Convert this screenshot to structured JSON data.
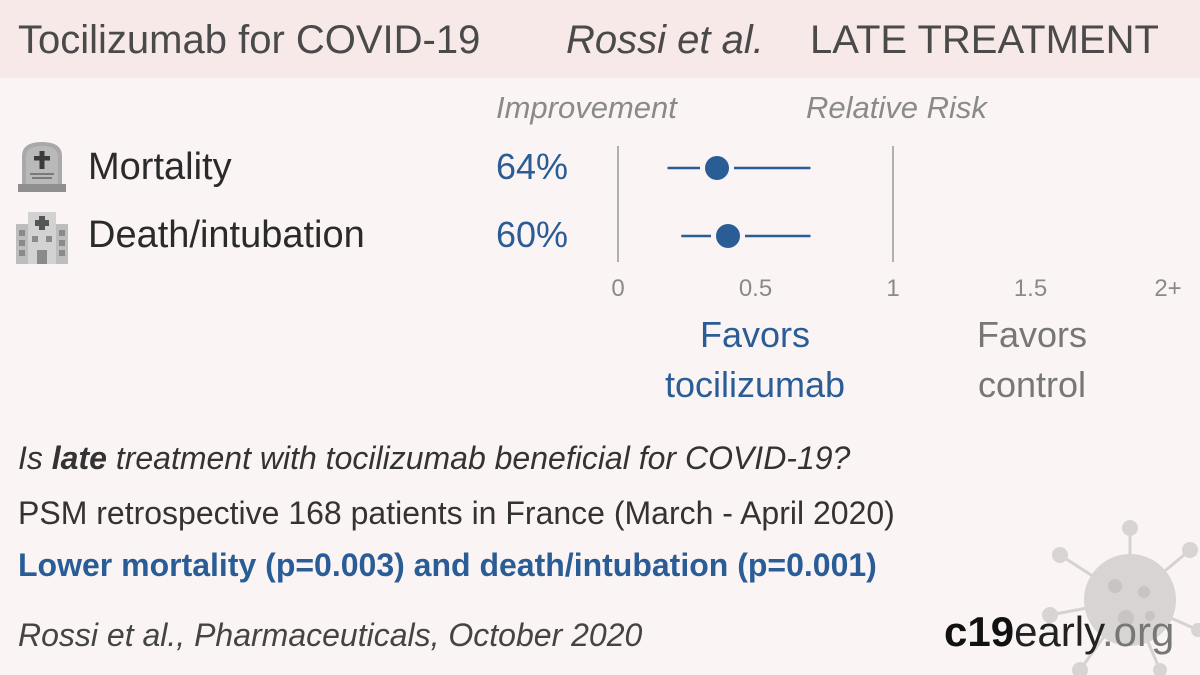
{
  "header": {
    "title": "Tocilizumab for COVID-19",
    "authors": "Rossi et al.",
    "stage": "LATE TREATMENT"
  },
  "columns": {
    "improvement": "Improvement",
    "relative_risk": "Relative Risk"
  },
  "outcomes": [
    {
      "label": "Mortality",
      "improvement": "64%",
      "icon": "tombstone-icon"
    },
    {
      "label": "Death/intubation",
      "improvement": "60%",
      "icon": "hospital-icon"
    }
  ],
  "chart_data": {
    "type": "forest",
    "x_axis": {
      "min": 0,
      "max": 2,
      "ticks": [
        0,
        0.5,
        1,
        1.5,
        2
      ],
      "tick_labels": [
        "0",
        "0.5",
        "1",
        "1.5",
        "2+"
      ]
    },
    "reference_lines": [
      0,
      1
    ],
    "rows": [
      {
        "name": "Mortality",
        "rr": 0.36,
        "ci_low": 0.18,
        "ci_high": 0.7
      },
      {
        "name": "Death/intubation",
        "rr": 0.4,
        "ci_low": 0.23,
        "ci_high": 0.7
      }
    ],
    "favors_left": [
      "Favors",
      "tocilizumab"
    ],
    "favors_right": [
      "Favors",
      "control"
    ],
    "colors": {
      "point": "#2a5d96",
      "axis": "#b0b0b0",
      "tick_text": "#8a8a8a"
    }
  },
  "summary": {
    "question_prefix": "Is ",
    "question_bold": "late",
    "question_suffix": " treatment with tocilizumab beneficial for COVID-19?",
    "design": "PSM retrospective 168 patients in France (March - April 2020)",
    "conclusion": "Lower mortality (p=0.003) and death/intubation (p=0.001)"
  },
  "citation": "Rossi et al., Pharmaceuticals, October 2020",
  "brand": {
    "part1": "c19",
    "part2": "early",
    "part3": ".org"
  },
  "colors": {
    "accent": "#2a5d96",
    "header_bg": "#f7e9e7",
    "page_bg": "#fbf4f4"
  }
}
